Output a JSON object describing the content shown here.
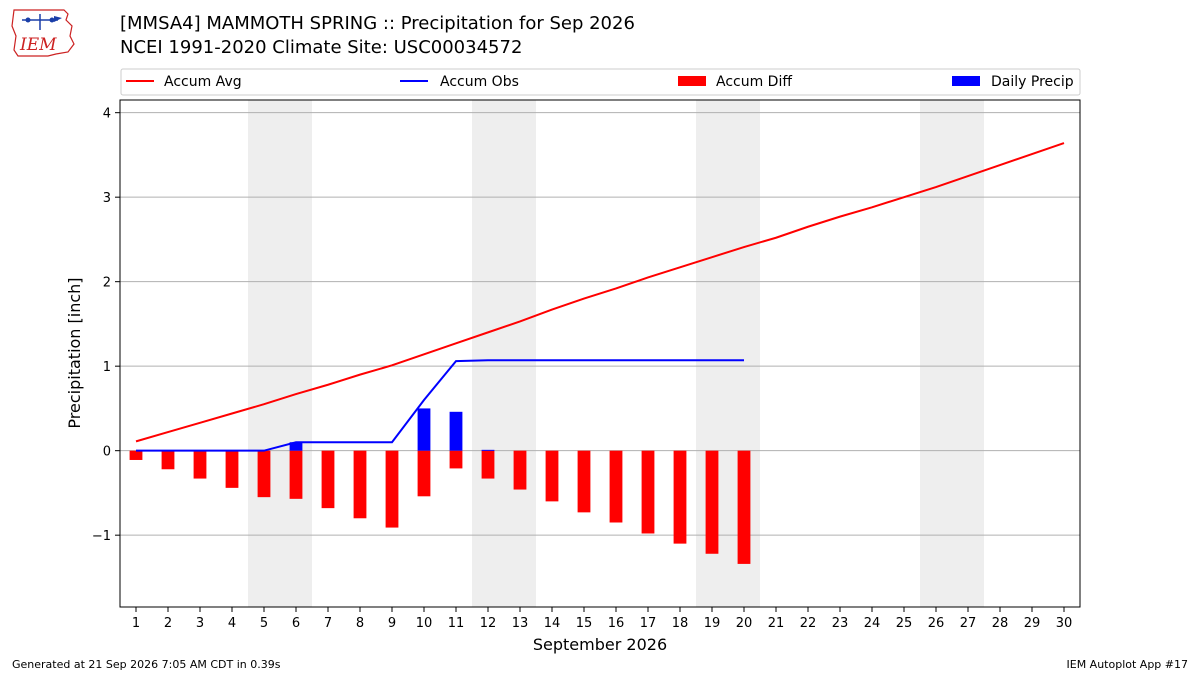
{
  "header": {
    "line1": "[MMSA4] MAMMOTH SPRING :: Precipitation for Sep 2026",
    "line2": "NCEI 1991-2020 Climate Site: USC00034572"
  },
  "logo": {
    "text": "IEM"
  },
  "footer": {
    "left": "Generated at 21 Sep 2026 7:05 AM CDT in 0.39s",
    "right": "IEM Autoplot App #17"
  },
  "chart_data": {
    "type": "bar",
    "xlabel": "September 2026",
    "ylabel": "Precipitation [inch]",
    "ylim": [
      -1.85,
      4.15
    ],
    "xlim": [
      0.5,
      30.5
    ],
    "yticks": [
      -1,
      0,
      1,
      2,
      3,
      4
    ],
    "ytick_labels": [
      "−1",
      "0",
      "1",
      "2",
      "3",
      "4"
    ],
    "x": [
      1,
      2,
      3,
      4,
      5,
      6,
      7,
      8,
      9,
      10,
      11,
      12,
      13,
      14,
      15,
      16,
      17,
      18,
      19,
      20,
      21,
      22,
      23,
      24,
      25,
      26,
      27,
      28,
      29,
      30
    ],
    "grid": "horizontal",
    "weekend_shading": [
      [
        4.5,
        6.5
      ],
      [
        11.5,
        13.5
      ],
      [
        18.5,
        20.5
      ],
      [
        25.5,
        27.5
      ]
    ],
    "legend": {
      "placement": "top",
      "entries": [
        {
          "label": "Accum Avg",
          "kind": "line",
          "color": "#ff0000"
        },
        {
          "label": "Accum Obs",
          "kind": "line",
          "color": "#0000ff"
        },
        {
          "label": "Accum Diff",
          "kind": "bar",
          "color": "#ff0000"
        },
        {
          "label": "Daily Precip",
          "kind": "bar",
          "color": "#0000ff"
        }
      ]
    },
    "series": [
      {
        "name": "Accum Avg",
        "kind": "line",
        "color": "#ff0000",
        "x": [
          1,
          2,
          3,
          4,
          5,
          6,
          7,
          8,
          9,
          10,
          11,
          12,
          13,
          14,
          15,
          16,
          17,
          18,
          19,
          20,
          21,
          22,
          23,
          24,
          25,
          26,
          27,
          28,
          29,
          30
        ],
        "values": [
          0.11,
          0.22,
          0.33,
          0.44,
          0.55,
          0.67,
          0.78,
          0.9,
          1.01,
          1.14,
          1.27,
          1.4,
          1.53,
          1.67,
          1.8,
          1.92,
          2.05,
          2.17,
          2.29,
          2.41,
          2.52,
          2.65,
          2.77,
          2.88,
          3.0,
          3.12,
          3.25,
          3.38,
          3.51,
          3.64
        ]
      },
      {
        "name": "Accum Obs",
        "kind": "line",
        "color": "#0000ff",
        "x": [
          1,
          2,
          3,
          4,
          5,
          6,
          7,
          8,
          9,
          10,
          11,
          12,
          13,
          14,
          15,
          16,
          17,
          18,
          19,
          20
        ],
        "values": [
          0,
          0,
          0,
          0,
          0,
          0.1,
          0.1,
          0.1,
          0.1,
          0.6,
          1.06,
          1.07,
          1.07,
          1.07,
          1.07,
          1.07,
          1.07,
          1.07,
          1.07,
          1.07
        ]
      },
      {
        "name": "Accum Diff",
        "kind": "bar",
        "color": "#ff0000",
        "x": [
          1,
          2,
          3,
          4,
          5,
          6,
          7,
          8,
          9,
          10,
          11,
          12,
          13,
          14,
          15,
          16,
          17,
          18,
          19,
          20
        ],
        "values": [
          -0.11,
          -0.22,
          -0.33,
          -0.44,
          -0.55,
          -0.57,
          -0.68,
          -0.8,
          -0.91,
          -0.54,
          -0.21,
          -0.33,
          -0.46,
          -0.6,
          -0.73,
          -0.85,
          -0.98,
          -1.1,
          -1.22,
          -1.34
        ]
      },
      {
        "name": "Daily Precip",
        "kind": "bar",
        "color": "#0000ff",
        "x": [
          1,
          2,
          3,
          4,
          5,
          6,
          7,
          8,
          9,
          10,
          11,
          12,
          13,
          14,
          15,
          16,
          17,
          18,
          19,
          20
        ],
        "values": [
          0,
          0,
          0,
          0,
          0,
          0.1,
          0,
          0,
          0,
          0.5,
          0.46,
          0.01,
          0,
          0,
          0,
          0,
          0,
          0,
          0,
          0
        ]
      }
    ]
  }
}
